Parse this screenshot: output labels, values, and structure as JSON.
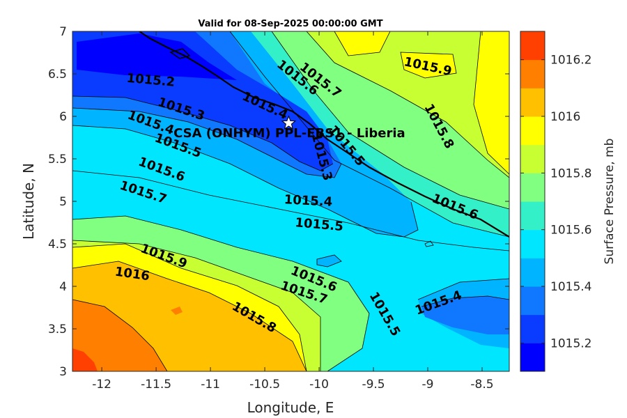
{
  "chart_data": {
    "type": "heatmap",
    "title": "Valid for 08-Sep-2025 00:00:00 GMT",
    "xlabel": "Longitude, E",
    "ylabel": "Latitude, N",
    "xlim": [
      -12.27,
      -8.25
    ],
    "ylim": [
      3,
      7
    ],
    "xticks": [
      "-12",
      "-11.5",
      "-11",
      "-10.5",
      "-10",
      "-9.5",
      "-9",
      "-8.5"
    ],
    "xtick_values": [
      -12,
      -11.5,
      -11,
      -10.5,
      -10,
      -9.5,
      -9,
      -8.5
    ],
    "yticks": [
      "3",
      "3.5",
      "4",
      "4.5",
      "5",
      "5.5",
      "6",
      "6.5",
      "7"
    ],
    "ytick_values": [
      3,
      3.5,
      4,
      4.5,
      5,
      5.5,
      6,
      6.5,
      7
    ],
    "colorbar": {
      "label": "Surface Pressure, mb",
      "ticks": [
        "1015.2",
        "1015.4",
        "1015.6",
        "1015.8",
        "1016",
        "1016.2"
      ],
      "tick_values": [
        1015.2,
        1015.4,
        1015.6,
        1015.8,
        1016.0,
        1016.2
      ],
      "range": [
        1015.1,
        1016.3
      ],
      "levels": [
        1015.1,
        1015.2,
        1015.3,
        1015.4,
        1015.5,
        1015.6,
        1015.7,
        1015.8,
        1015.9,
        1016.0,
        1016.1,
        1016.2,
        1016.3
      ],
      "colors": [
        "#0000ff",
        "#0a3cff",
        "#0f78ff",
        "#00b4ff",
        "#00e6ff",
        "#33f0c8",
        "#80ff80",
        "#c8ff33",
        "#ffff00",
        "#ffc000",
        "#ff8000",
        "#ff4000"
      ]
    },
    "contour_labels": [
      {
        "text": "1015.2",
        "lon": -11.55,
        "lat": 6.42,
        "rot": 5
      },
      {
        "text": "1015.3",
        "lon": -11.27,
        "lat": 6.08,
        "rot": 18
      },
      {
        "text": "1015.4",
        "lon": -11.55,
        "lat": 5.92,
        "rot": 20
      },
      {
        "text": "1015.5",
        "lon": -11.3,
        "lat": 5.65,
        "rot": 20
      },
      {
        "text": "1015.6",
        "lon": -11.45,
        "lat": 5.37,
        "rot": 20
      },
      {
        "text": "1015.7",
        "lon": -11.62,
        "lat": 5.1,
        "rot": 18
      },
      {
        "text": "1015.9",
        "lon": -11.43,
        "lat": 4.35,
        "rot": 20
      },
      {
        "text": "1016",
        "lon": -11.72,
        "lat": 4.14,
        "rot": 8
      },
      {
        "text": "1015.7",
        "lon": -9.99,
        "lat": 6.42,
        "rot": 38
      },
      {
        "text": "1015.6",
        "lon": -10.2,
        "lat": 6.45,
        "rot": 38
      },
      {
        "text": "1015.4",
        "lon": -10.5,
        "lat": 6.12,
        "rot": 25
      },
      {
        "text": "1015.5",
        "lon": -9.75,
        "lat": 5.65,
        "rot": 50
      },
      {
        "text": "1015.3",
        "lon": -9.98,
        "lat": 5.52,
        "rot": 75
      },
      {
        "text": "1015.9",
        "lon": -9.0,
        "lat": 6.58,
        "rot": 12
      },
      {
        "text": "1015.8",
        "lon": -8.9,
        "lat": 5.88,
        "rot": 62
      },
      {
        "text": "1015.4",
        "lon": -10.1,
        "lat": 5.0,
        "rot": 3
      },
      {
        "text": "1015.5",
        "lon": -10.0,
        "lat": 4.72,
        "rot": 5
      },
      {
        "text": "1015.6",
        "lon": -8.75,
        "lat": 4.93,
        "rot": 22
      },
      {
        "text": "1015.6",
        "lon": -10.05,
        "lat": 4.08,
        "rot": 22
      },
      {
        "text": "1015.7",
        "lon": -10.14,
        "lat": 3.92,
        "rot": 18
      },
      {
        "text": "1015.8",
        "lon": -10.6,
        "lat": 3.63,
        "rot": 30
      },
      {
        "text": "1015.5",
        "lon": -9.4,
        "lat": 3.67,
        "rot": 60
      },
      {
        "text": "1015.4",
        "lon": -8.9,
        "lat": 3.8,
        "rot": -20
      }
    ],
    "station": {
      "label": "CSA (ONHYM) PPL-EBS1 - Liberia",
      "lon": -10.28,
      "lat": 5.92,
      "marker": "star"
    }
  }
}
